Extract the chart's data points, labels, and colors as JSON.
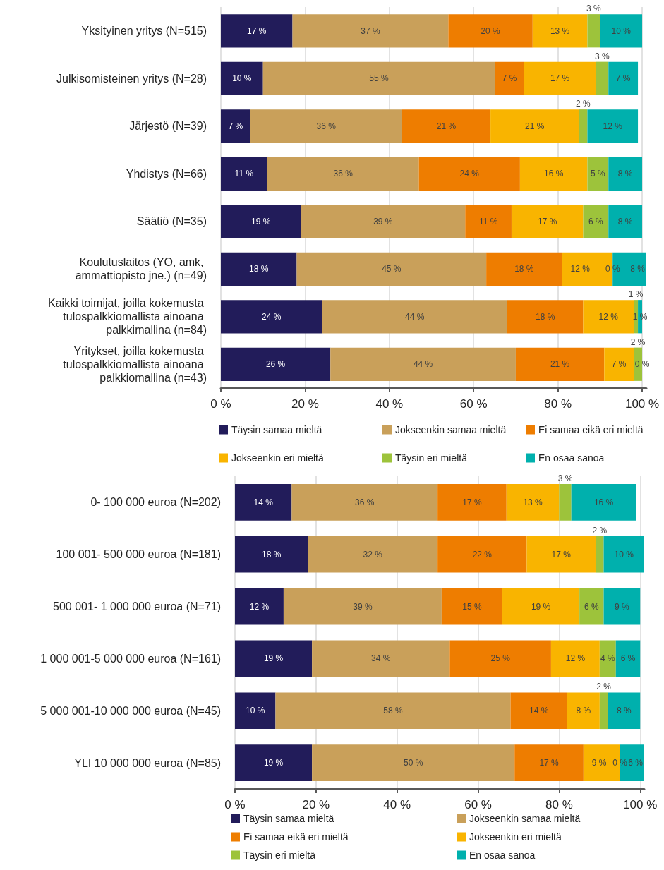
{
  "chart_data": [
    {
      "type": "bar",
      "orientation": "horizontal",
      "stacked": true,
      "categories": [
        "Yksityinen yritys (N=515)",
        "Julkisomisteinen yritys (N=28)",
        "Järjestö (N=39)",
        "Yhdistys (N=66)",
        "Säätiö (N=35)",
        "Koulutuslaitos (YO, amk, ammattiopisto jne.) (n=49)",
        "Kaikki toimijat, joilla kokemusta tulospalkkiomallista ainoana palkkimallina (n=84)",
        "Yritykset, joilla kokemusta tulospalkkiomallista ainoana palkkiomallina (n=43)"
      ],
      "series": [
        {
          "name": "Täysin samaa mieltä",
          "color": "#221c5a",
          "values": [
            17,
            10,
            7,
            11,
            19,
            18,
            24,
            26
          ],
          "value_labels": [
            "17 %",
            "10 %",
            "7 %",
            "11 %",
            "19 %",
            "18 %",
            "24 %",
            "26 %"
          ]
        },
        {
          "name": "Jokseenkin samaa mieltä",
          "color": "#c9a05a",
          "values": [
            37,
            55,
            36,
            36,
            39,
            45,
            44,
            44
          ],
          "value_labels": [
            "37 %",
            "55 %",
            "36 %",
            "36 %",
            "39 %",
            "45 %",
            "44 %",
            "44 %"
          ]
        },
        {
          "name": "Ei samaa eikä eri mieltä",
          "color": "#ee7d00",
          "values": [
            20,
            7,
            21,
            24,
            11,
            18,
            18,
            21
          ],
          "value_labels": [
            "20 %",
            "7 %",
            "21 %",
            "24 %",
            "11 %",
            "18 %",
            "18 %",
            "21 %"
          ]
        },
        {
          "name": "Jokseenkin eri mieltä",
          "color": "#f9b400",
          "values": [
            13,
            17,
            21,
            16,
            17,
            12,
            12,
            7
          ],
          "value_labels": [
            "13 %",
            "17 %",
            "21 %",
            "16 %",
            "17 %",
            "12 %",
            "12 %",
            "7 %"
          ]
        },
        {
          "name": "Täysin eri mieltä",
          "color": "#9dc33b",
          "values": [
            3,
            3,
            2,
            5,
            6,
            0,
            1,
            2
          ],
          "value_labels": [
            "3 %",
            "3 %",
            "2 %",
            "5 %",
            "6 %",
            "0 %",
            "1 %",
            "2 %"
          ]
        },
        {
          "name": "En osaa sanoa",
          "color": "#00b0ad",
          "values": [
            10,
            7,
            12,
            8,
            8,
            8,
            1,
            0
          ],
          "value_labels": [
            "10 %",
            "7 %",
            "12 %",
            "8 %",
            "8 %",
            "8 %",
            "1 %",
            "0 %"
          ]
        }
      ],
      "xlim": [
        0,
        101
      ],
      "xticks": [
        {
          "value": 0,
          "label": "0 %"
        },
        {
          "value": 20,
          "label": "20 %"
        },
        {
          "value": 40,
          "label": "40 %"
        },
        {
          "value": 60,
          "label": "60 %"
        },
        {
          "value": 80,
          "label": "80 %"
        },
        {
          "value": 100,
          "label": "100 %"
        }
      ],
      "grid": "x",
      "legend": "bottom"
    },
    {
      "type": "bar",
      "orientation": "horizontal",
      "stacked": true,
      "categories": [
        "0- 100 000 euroa (N=202)",
        "100 001- 500 000 euroa (N=181)",
        "500 001- 1 000 000 euroa (N=71)",
        "1 000 001-5 000 000 euroa (N=161)",
        "5 000 001-10 000 000 euroa (N=45)",
        "YLI 10 000 000 euroa (N=85)"
      ],
      "series": [
        {
          "name": "Täysin samaa mieltä",
          "color": "#221c5a",
          "values": [
            14,
            18,
            12,
            19,
            10,
            19
          ],
          "value_labels": [
            "14 %",
            "18 %",
            "12 %",
            "19 %",
            "10 %",
            "19 %"
          ]
        },
        {
          "name": "Jokseenkin samaa mieltä",
          "color": "#c9a05a",
          "values": [
            36,
            32,
            39,
            34,
            58,
            50
          ],
          "value_labels": [
            "36 %",
            "32 %",
            "39 %",
            "34 %",
            "58 %",
            "50 %"
          ]
        },
        {
          "name": "Ei samaa eikä eri mieltä",
          "color": "#ee7d00",
          "values": [
            17,
            22,
            15,
            25,
            14,
            17
          ],
          "value_labels": [
            "17 %",
            "22 %",
            "15 %",
            "25 %",
            "14 %",
            "17 %"
          ]
        },
        {
          "name": "Jokseenkin eri mieltä",
          "color": "#f9b400",
          "values": [
            13,
            17,
            19,
            12,
            8,
            9
          ],
          "value_labels": [
            "13 %",
            "17 %",
            "19 %",
            "12 %",
            "8 %",
            "9 %"
          ]
        },
        {
          "name": "Täysin eri mieltä",
          "color": "#9dc33b",
          "values": [
            3,
            2,
            6,
            4,
            2,
            0
          ],
          "value_labels": [
            "3 %",
            "2 %",
            "6 %",
            "4 %",
            "2 %",
            "0 %"
          ]
        },
        {
          "name": "En osaa sanoa",
          "color": "#00b0ad",
          "values": [
            16,
            10,
            9,
            6,
            8,
            6
          ],
          "value_labels": [
            "16 %",
            "10 %",
            "9 %",
            "6 %",
            "8 %",
            "6 %"
          ]
        }
      ],
      "xlim": [
        0,
        101
      ],
      "xticks": [
        {
          "value": 0,
          "label": "0 %"
        },
        {
          "value": 20,
          "label": "20 %"
        },
        {
          "value": 40,
          "label": "40 %"
        },
        {
          "value": 60,
          "label": "60 %"
        },
        {
          "value": 80,
          "label": "80 %"
        },
        {
          "value": 100,
          "label": "100 %"
        }
      ],
      "grid": "x",
      "legend": "bottom"
    }
  ]
}
